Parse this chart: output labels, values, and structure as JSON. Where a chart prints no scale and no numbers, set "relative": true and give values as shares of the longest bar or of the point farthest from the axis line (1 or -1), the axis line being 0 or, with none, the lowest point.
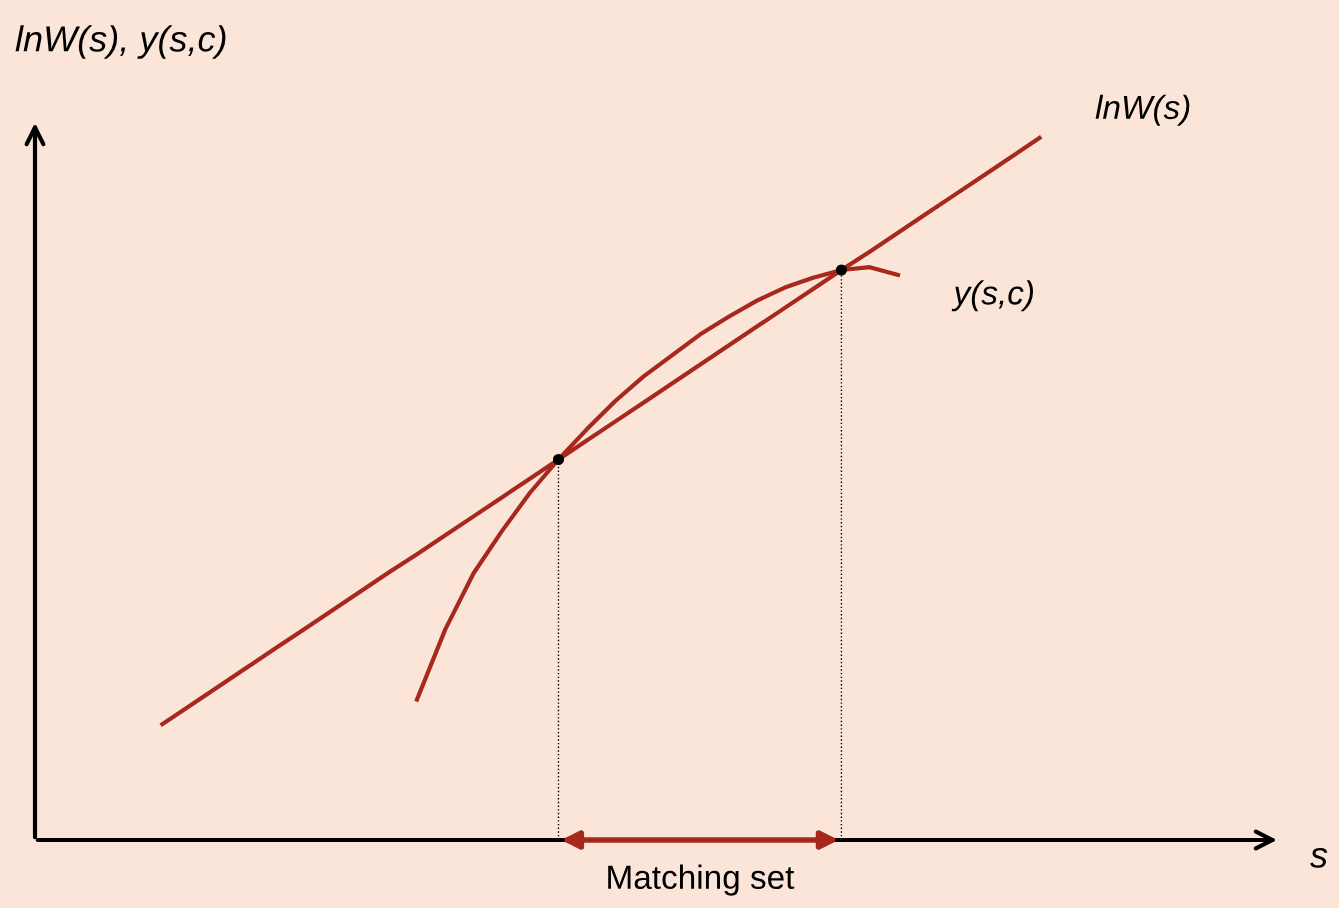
{
  "chart_data": {
    "type": "line",
    "relative": true,
    "ylabel": "lnW(s), y(s,c)",
    "tick_labels": false,
    "legend": false,
    "marker": "none",
    "line_style": "solid",
    "categories": [
      null,
      null,
      null,
      null,
      null,
      null,
      null,
      null,
      null,
      null,
      null,
      null,
      null,
      null,
      null,
      null,
      null,
      null,
      null,
      null,
      null,
      null,
      null,
      null,
      null,
      null,
      null,
      null,
      null,
      null,
      null,
      null
    ],
    "series": [
      {
        "name": "lnW(s)",
        "color": "#a8281e",
        "values": [
          0.165,
          0.192,
          0.219,
          0.246,
          0.273,
          0.3,
          0.327,
          0.354,
          0.381,
          0.407,
          0.434,
          0.461,
          0.488,
          0.515,
          0.542,
          0.569,
          0.596,
          0.623,
          0.65,
          0.677,
          0.704,
          0.731,
          0.758,
          0.785,
          0.812,
          0.838,
          0.865,
          0.892,
          0.919,
          0.946,
          0.973,
          1.0
        ]
      },
      {
        "name": "y(s,c)",
        "color": "#a8281e",
        "values": [
          null,
          null,
          null,
          null,
          null,
          null,
          null,
          null,
          null,
          0.2,
          0.3,
          0.38,
          0.44,
          0.495,
          0.542,
          0.585,
          0.625,
          0.66,
          0.69,
          0.72,
          0.745,
          0.768,
          0.787,
          0.801,
          0.812,
          0.816,
          0.805,
          null,
          null,
          null,
          null,
          null
        ]
      }
    ],
    "annotations": [
      "Matching set",
      "s"
    ]
  }
}
